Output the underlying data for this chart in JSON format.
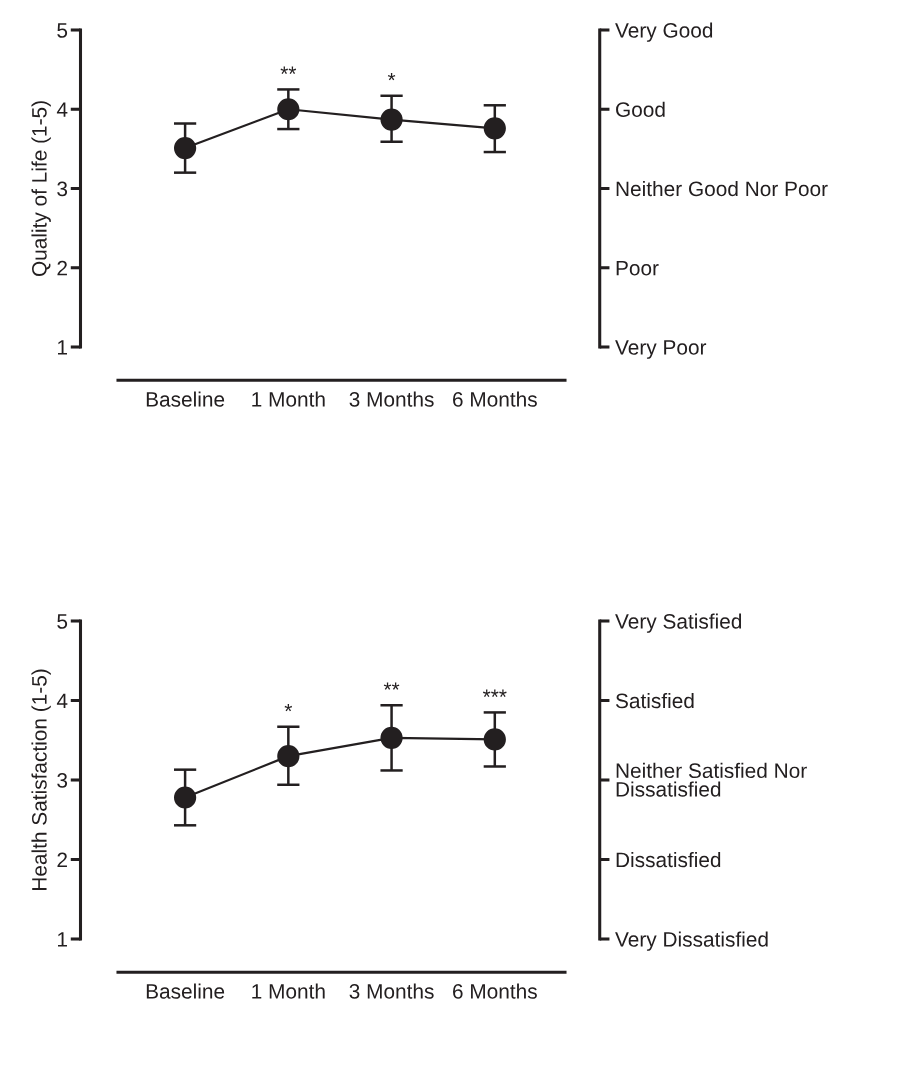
{
  "chart_data": [
    {
      "type": "line",
      "ylabel": "Quality of Life (1-5)",
      "categories": [
        "Baseline",
        "1 Month",
        "3 Months",
        "6 Months"
      ],
      "series": [
        {
          "color": "#231f20",
          "values": [
            3.51,
            4.0,
            3.87,
            3.76
          ],
          "errors": [
            [
              3.2,
              3.82
            ],
            [
              3.75,
              4.25
            ],
            [
              3.59,
              4.17
            ],
            [
              3.46,
              4.05
            ]
          ]
        }
      ],
      "ylim": [
        1,
        5
      ],
      "yticks": [
        1,
        2,
        3,
        4,
        5
      ],
      "y2_categories": [
        "Very Good",
        "Good",
        "Neither Good Nor Poor",
        "Poor",
        "Very Poor"
      ],
      "marker": "circle",
      "line_style": "solid",
      "annotations": [
        {
          "text": "**",
          "x": "1 Month",
          "y": 4.25
        },
        {
          "text": "*",
          "x": "3 Months",
          "y": 4.17
        }
      ]
    },
    {
      "type": "line",
      "ylabel": "Health Satisfaction (1-5)",
      "categories": [
        "Baseline",
        "1 Month",
        "3 Months",
        "6 Months"
      ],
      "series": [
        {
          "color": "#231f20",
          "values": [
            2.78,
            3.3,
            3.53,
            3.51
          ],
          "errors": [
            [
              2.43,
              3.13
            ],
            [
              2.94,
              3.67
            ],
            [
              3.12,
              3.94
            ],
            [
              3.17,
              3.85
            ]
          ]
        }
      ],
      "ylim": [
        1,
        5
      ],
      "yticks": [
        1,
        2,
        3,
        4,
        5
      ],
      "y2_categories": [
        "Very Satisfied",
        "Satisfied",
        "Neither Satisfied Nor\nDissatisfied",
        "Dissatisfied",
        "Very Dissatisfied"
      ],
      "marker": "circle",
      "line_style": "solid",
      "annotations": [
        {
          "text": "*",
          "x": "1 Month",
          "y": 3.67
        },
        {
          "text": "**",
          "x": "3 Months",
          "y": 3.94
        },
        {
          "text": "***",
          "x": "6 Months",
          "y": 3.85
        }
      ]
    }
  ]
}
